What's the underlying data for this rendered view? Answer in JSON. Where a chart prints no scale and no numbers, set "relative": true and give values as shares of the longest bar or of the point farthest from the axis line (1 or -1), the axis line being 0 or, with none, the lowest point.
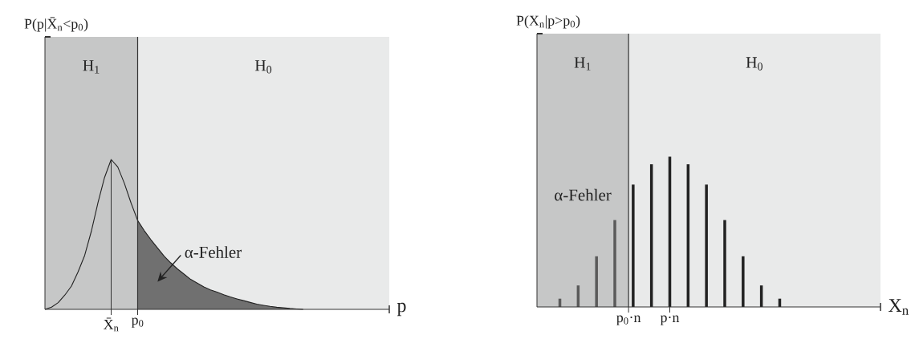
{
  "chart_data": [
    {
      "type": "line",
      "relative": true,
      "xlabel": "p",
      "ylabel": "P(p|X̄$_{n}$<p$_{0}$)",
      "categories": [
        null,
        null,
        null,
        null,
        null,
        null,
        null,
        null,
        null,
        null,
        "X̄$_{n}$",
        null,
        null,
        null,
        "p$_{0}$",
        null,
        null,
        null,
        null,
        null,
        null,
        null,
        null,
        null,
        null,
        null,
        null,
        null,
        null,
        null,
        null,
        null,
        null,
        null,
        null,
        null,
        null,
        null,
        null,
        null,
        null,
        null,
        null,
        null,
        null,
        null,
        null,
        null,
        null,
        null,
        null,
        null,
        null
      ],
      "series": [
        {
          "type": "area",
          "color": "#707070",
          "values": [
            null,
            null,
            null,
            null,
            null,
            null,
            null,
            null,
            null,
            null,
            null,
            null,
            null,
            null,
            0.593,
            0.525,
            0.465,
            0.41,
            0.355,
            0.31,
            0.27,
            0.235,
            0.2,
            0.175,
            0.15,
            0.13,
            0.115,
            0.098,
            0.083,
            0.07,
            0.058,
            0.046,
            0.035,
            0.027,
            0.02,
            0.014,
            0.01,
            0.006,
            0.003,
            0,
            null,
            null,
            null,
            null,
            null,
            null,
            null,
            null,
            null,
            null,
            null,
            null,
            null
          ]
        },
        {
          "type": "line",
          "color": "#222222",
          "values": [
            0,
            0.015,
            0.045,
            0.095,
            0.155,
            0.25,
            0.36,
            0.52,
            0.71,
            0.88,
            1,
            0.95,
            0.84,
            0.71,
            0.593,
            0.525,
            0.465,
            0.41,
            0.355,
            0.31,
            0.27,
            0.235,
            0.2,
            0.175,
            0.15,
            0.13,
            0.115,
            0.098,
            0.083,
            0.07,
            0.058,
            0.046,
            0.035,
            0.027,
            0.02,
            0.014,
            0.01,
            0.006,
            0.003,
            0,
            null,
            null,
            null,
            null,
            null,
            null,
            null,
            null,
            null,
            null,
            null,
            null,
            null
          ]
        },
        {
          "type": "bar",
          "color": "#333333",
          "values": [
            null,
            null,
            null,
            null,
            null,
            null,
            null,
            null,
            null,
            null,
            1,
            null,
            null,
            null,
            null,
            null,
            null,
            null,
            null,
            null,
            null,
            null,
            null,
            null,
            null,
            null,
            null,
            null,
            null,
            null,
            null,
            null,
            null,
            null,
            null,
            null,
            null,
            null,
            null,
            null,
            null,
            null,
            null,
            null,
            null,
            null,
            null,
            null,
            null,
            null,
            null,
            null,
            null
          ]
        }
      ],
      "ref_lines": [
        {
          "axis": "x",
          "value": "p$_{0}$",
          "color": "#333333"
        }
      ],
      "annotations": [
        "H$_{1}$",
        "H$_{0}$",
        "α-Fehler"
      ]
    },
    {
      "type": "bar",
      "relative": true,
      "xlabel": "X$_{n}$",
      "ylabel": "P(X$_{n}$|p>p$_{0}$)",
      "categories": [
        null,
        null,
        null,
        null,
        null,
        null,
        null,
        null,
        null,
        null,
        null,
        null,
        null,
        null,
        null,
        null,
        null,
        null,
        null,
        null,
        "p$_{0}$·n",
        null,
        null,
        null,
        null,
        null,
        null,
        null,
        null,
        "p·n",
        null,
        null,
        null,
        null,
        null,
        null,
        null,
        null,
        null,
        null,
        null,
        null,
        null,
        null,
        null,
        null,
        null,
        null,
        null,
        null,
        null,
        null,
        null,
        null,
        null,
        null,
        null,
        null,
        null,
        null,
        null,
        null,
        null,
        null,
        null,
        null,
        null,
        null,
        null,
        null,
        null,
        null,
        null,
        null,
        null,
        null
      ],
      "series": [
        {
          "color": "#5a5a5a",
          "values": [
            null,
            null,
            null,
            null,
            null,
            0.055,
            null,
            null,
            null,
            0.143,
            null,
            null,
            null,
            0.337,
            null,
            null,
            null,
            0.578,
            null,
            null,
            null,
            null,
            null,
            null,
            null,
            null,
            null,
            null,
            null,
            null,
            null,
            null,
            null,
            null,
            null,
            null,
            null,
            null,
            null,
            null,
            null,
            null,
            null,
            null,
            null,
            null,
            null,
            null,
            null,
            null,
            null,
            null,
            null,
            null,
            null,
            null,
            null,
            null,
            null,
            null,
            null,
            null,
            null,
            null,
            null,
            null,
            null,
            null,
            null,
            null,
            null,
            null,
            null,
            null,
            null,
            null
          ]
        },
        {
          "color": "#222222",
          "values": [
            null,
            null,
            null,
            null,
            null,
            null,
            null,
            null,
            null,
            null,
            null,
            null,
            null,
            null,
            null,
            null,
            null,
            null,
            null,
            null,
            null,
            0.814,
            null,
            null,
            null,
            0.949,
            null,
            null,
            null,
            1,
            null,
            null,
            null,
            0.949,
            null,
            null,
            null,
            0.814,
            null,
            null,
            null,
            0.578,
            null,
            null,
            null,
            0.337,
            null,
            null,
            null,
            0.143,
            null,
            null,
            null,
            0.055,
            null,
            null,
            null,
            null,
            null,
            null,
            null,
            null,
            null,
            null,
            null,
            null,
            null,
            null,
            null,
            null,
            null,
            null,
            null,
            null,
            null,
            null
          ]
        }
      ],
      "ref_lines": [
        {
          "axis": "x",
          "value": "p$_{0}$·n",
          "color": "#333333"
        }
      ],
      "annotations": [
        "H$_{1}$",
        "H$_{0}$",
        "α-Fehler"
      ]
    }
  ]
}
